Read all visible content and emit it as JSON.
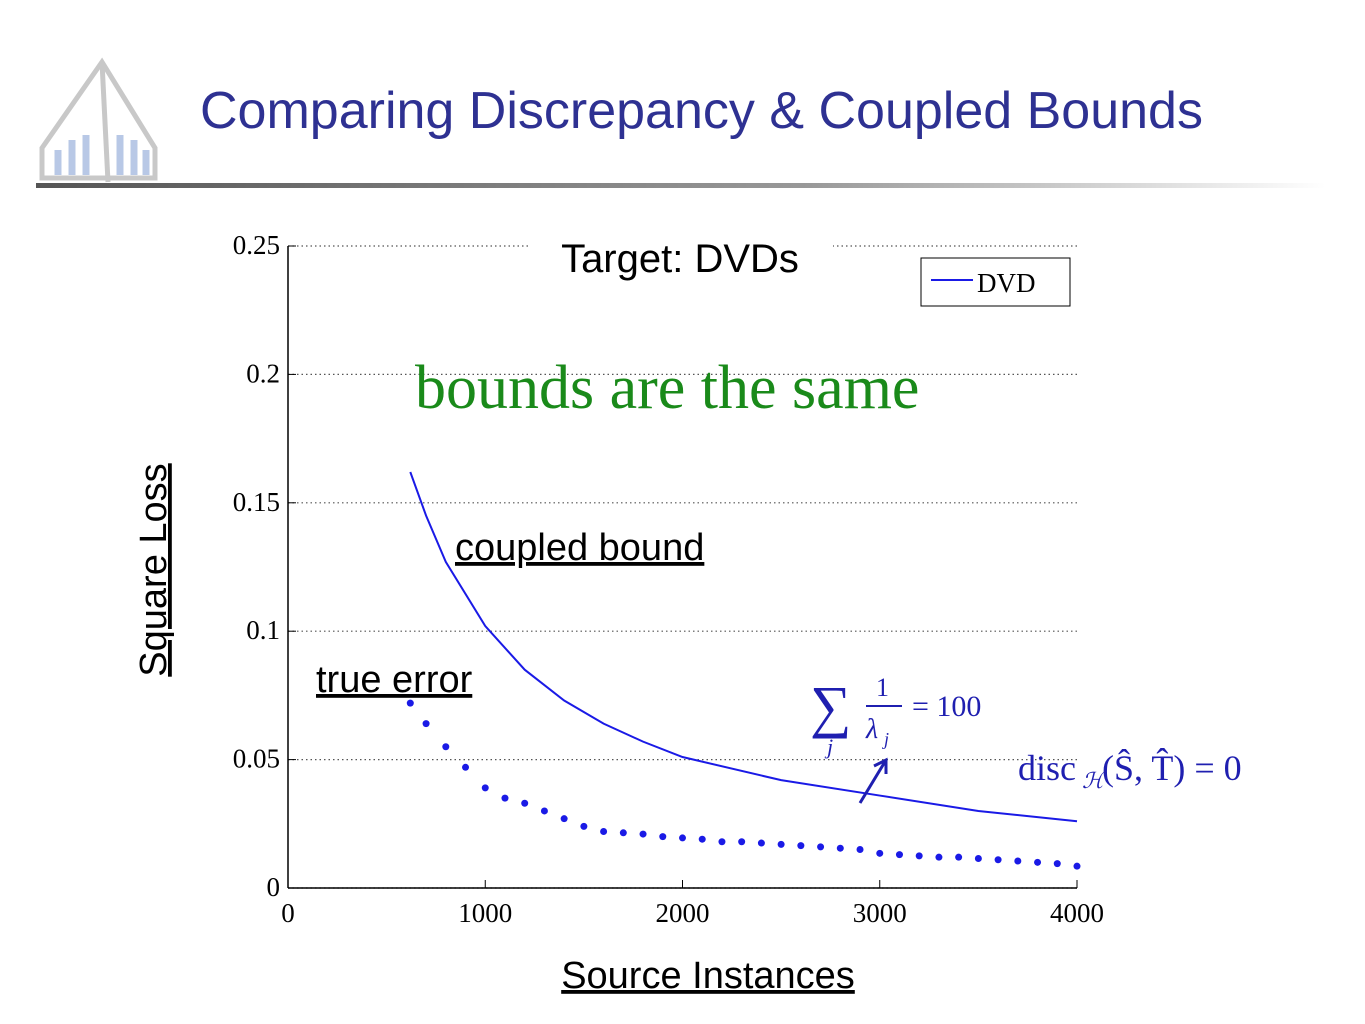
{
  "slide": {
    "title": "Comparing Discrepancy & Coupled Bounds"
  },
  "chart_data": {
    "type": "line",
    "title": "Target: DVDs",
    "xlabel": "Source Instances",
    "ylabel": "Square Loss",
    "xlim": [
      0,
      4000
    ],
    "xticks": [
      0,
      1000,
      2000,
      3000,
      4000
    ],
    "ylim": [
      0,
      0.25
    ],
    "yticks": [
      0,
      0.05,
      0.1,
      0.15,
      0.2,
      0.25
    ],
    "grid": true,
    "legend": {
      "entries": [
        "DVD"
      ],
      "position": "upper right",
      "color": "#1a1ae6"
    },
    "series": [
      {
        "name": "coupled bound",
        "style": "line",
        "color": "#1a1ae6",
        "x": [
          620,
          700,
          800,
          1000,
          1200,
          1400,
          1600,
          1800,
          2000,
          2500,
          3000,
          3500,
          4000
        ],
        "values": [
          0.162,
          0.145,
          0.127,
          0.102,
          0.085,
          0.073,
          0.064,
          0.057,
          0.051,
          0.042,
          0.036,
          0.03,
          0.026
        ]
      },
      {
        "name": "true error",
        "style": "dots",
        "color": "#1a1ae6",
        "x": [
          620,
          700,
          800,
          900,
          1000,
          1100,
          1200,
          1300,
          1400,
          1500,
          1600,
          1700,
          1800,
          1900,
          2000,
          2100,
          2200,
          2300,
          2400,
          2500,
          2600,
          2700,
          2800,
          2900,
          3000,
          3100,
          3200,
          3300,
          3400,
          3500,
          3600,
          3700,
          3800,
          3900,
          4000
        ],
        "values": [
          0.072,
          0.064,
          0.055,
          0.047,
          0.039,
          0.035,
          0.033,
          0.03,
          0.027,
          0.024,
          0.022,
          0.0215,
          0.021,
          0.02,
          0.0195,
          0.019,
          0.018,
          0.018,
          0.0175,
          0.017,
          0.0165,
          0.016,
          0.0155,
          0.015,
          0.0135,
          0.013,
          0.0125,
          0.012,
          0.012,
          0.0115,
          0.011,
          0.0105,
          0.01,
          0.0095,
          0.0085
        ]
      }
    ],
    "annotations": {
      "headline": "bounds are the same",
      "sum": {
        "symbol": "∑",
        "index": "j",
        "numerator": "1",
        "denominator": "λ",
        "denominator_index": "j",
        "rhs": "= 100"
      },
      "disc": {
        "op": "disc",
        "sub": "ℋ",
        "args": "(Ŝ, T̂) = 0"
      }
    }
  }
}
